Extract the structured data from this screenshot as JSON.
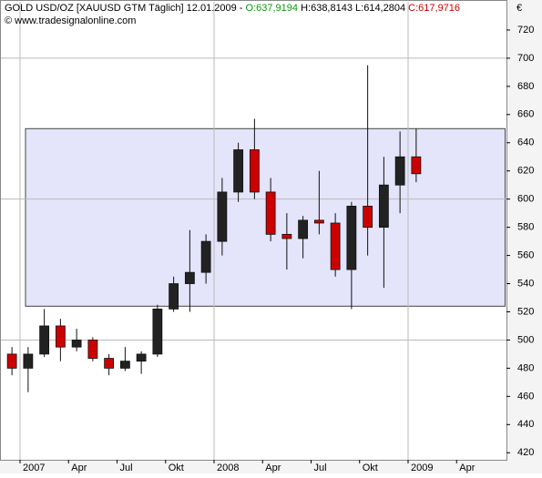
{
  "chart_data": {
    "type": "candlestick",
    "header": {
      "symbol": "GOLD USD/OZ [XAUUSD GTM  Täglich]",
      "date": "12.01.2009 -",
      "open": "O:637,9194",
      "high": "H:638,8143",
      "low": "L:614,2804",
      "close": "C:617,9716"
    },
    "copyright": "© www.tradesignalonline.com",
    "currency": "€",
    "x": [
      "2006-12",
      "2007-01",
      "2007-02",
      "2007-03",
      "2007-04",
      "2007-05",
      "2007-06",
      "2007-07",
      "2007-08",
      "2007-09",
      "2007-10",
      "2007-11",
      "2007-12",
      "2008-01",
      "2008-02",
      "2008-03",
      "2008-04",
      "2008-05",
      "2008-06",
      "2008-07",
      "2008-08",
      "2008-09",
      "2008-10",
      "2008-11",
      "2008-12",
      "2009-01"
    ],
    "open": [
      490,
      480,
      490,
      510,
      495,
      500,
      487,
      480,
      485,
      490,
      522,
      540,
      548,
      570,
      605,
      635,
      605,
      575,
      572,
      585,
      583,
      550,
      595,
      580,
      610,
      630
    ],
    "high": [
      495,
      495,
      522,
      515,
      508,
      502,
      490,
      495,
      492,
      525,
      545,
      578,
      575,
      615,
      640,
      657,
      615,
      590,
      588,
      620,
      590,
      598,
      695,
      630,
      648,
      650
    ],
    "low": [
      475,
      463,
      488,
      485,
      492,
      485,
      475,
      478,
      476,
      488,
      520,
      520,
      540,
      560,
      598,
      600,
      570,
      550,
      558,
      575,
      545,
      522,
      560,
      537,
      590,
      612
    ],
    "close": [
      480,
      490,
      510,
      495,
      500,
      487,
      480,
      485,
      490,
      522,
      540,
      548,
      570,
      605,
      635,
      605,
      575,
      572,
      585,
      583,
      550,
      595,
      580,
      610,
      630,
      618
    ],
    "up_color": "#222222",
    "down_color": "#cc0000",
    "ylim": [
      415,
      740
    ],
    "yticks": [
      420,
      440,
      460,
      480,
      500,
      520,
      540,
      560,
      580,
      600,
      620,
      640,
      660,
      680,
      700,
      720
    ],
    "xticks": [
      {
        "value": "2007-01",
        "label": "2007"
      },
      {
        "value": "2007-04",
        "label": "Apr"
      },
      {
        "value": "2007-07",
        "label": "Jul"
      },
      {
        "value": "2007-10",
        "label": "Okt"
      },
      {
        "value": "2008-01",
        "label": "2008"
      },
      {
        "value": "2008-04",
        "label": "Apr"
      },
      {
        "value": "2008-07",
        "label": "Jul"
      },
      {
        "value": "2008-10",
        "label": "Okt"
      },
      {
        "value": "2009-01",
        "label": "2009"
      },
      {
        "value": "2009-04",
        "label": "Apr"
      }
    ],
    "ygrid": [
      500,
      600,
      700
    ],
    "xgrid": [
      "2007-01",
      "2008-01",
      "2009-01"
    ],
    "band": {
      "from": "2007-01",
      "to": "2009-07",
      "low": 524,
      "high": 650,
      "color": "#e4e4fb"
    }
  }
}
